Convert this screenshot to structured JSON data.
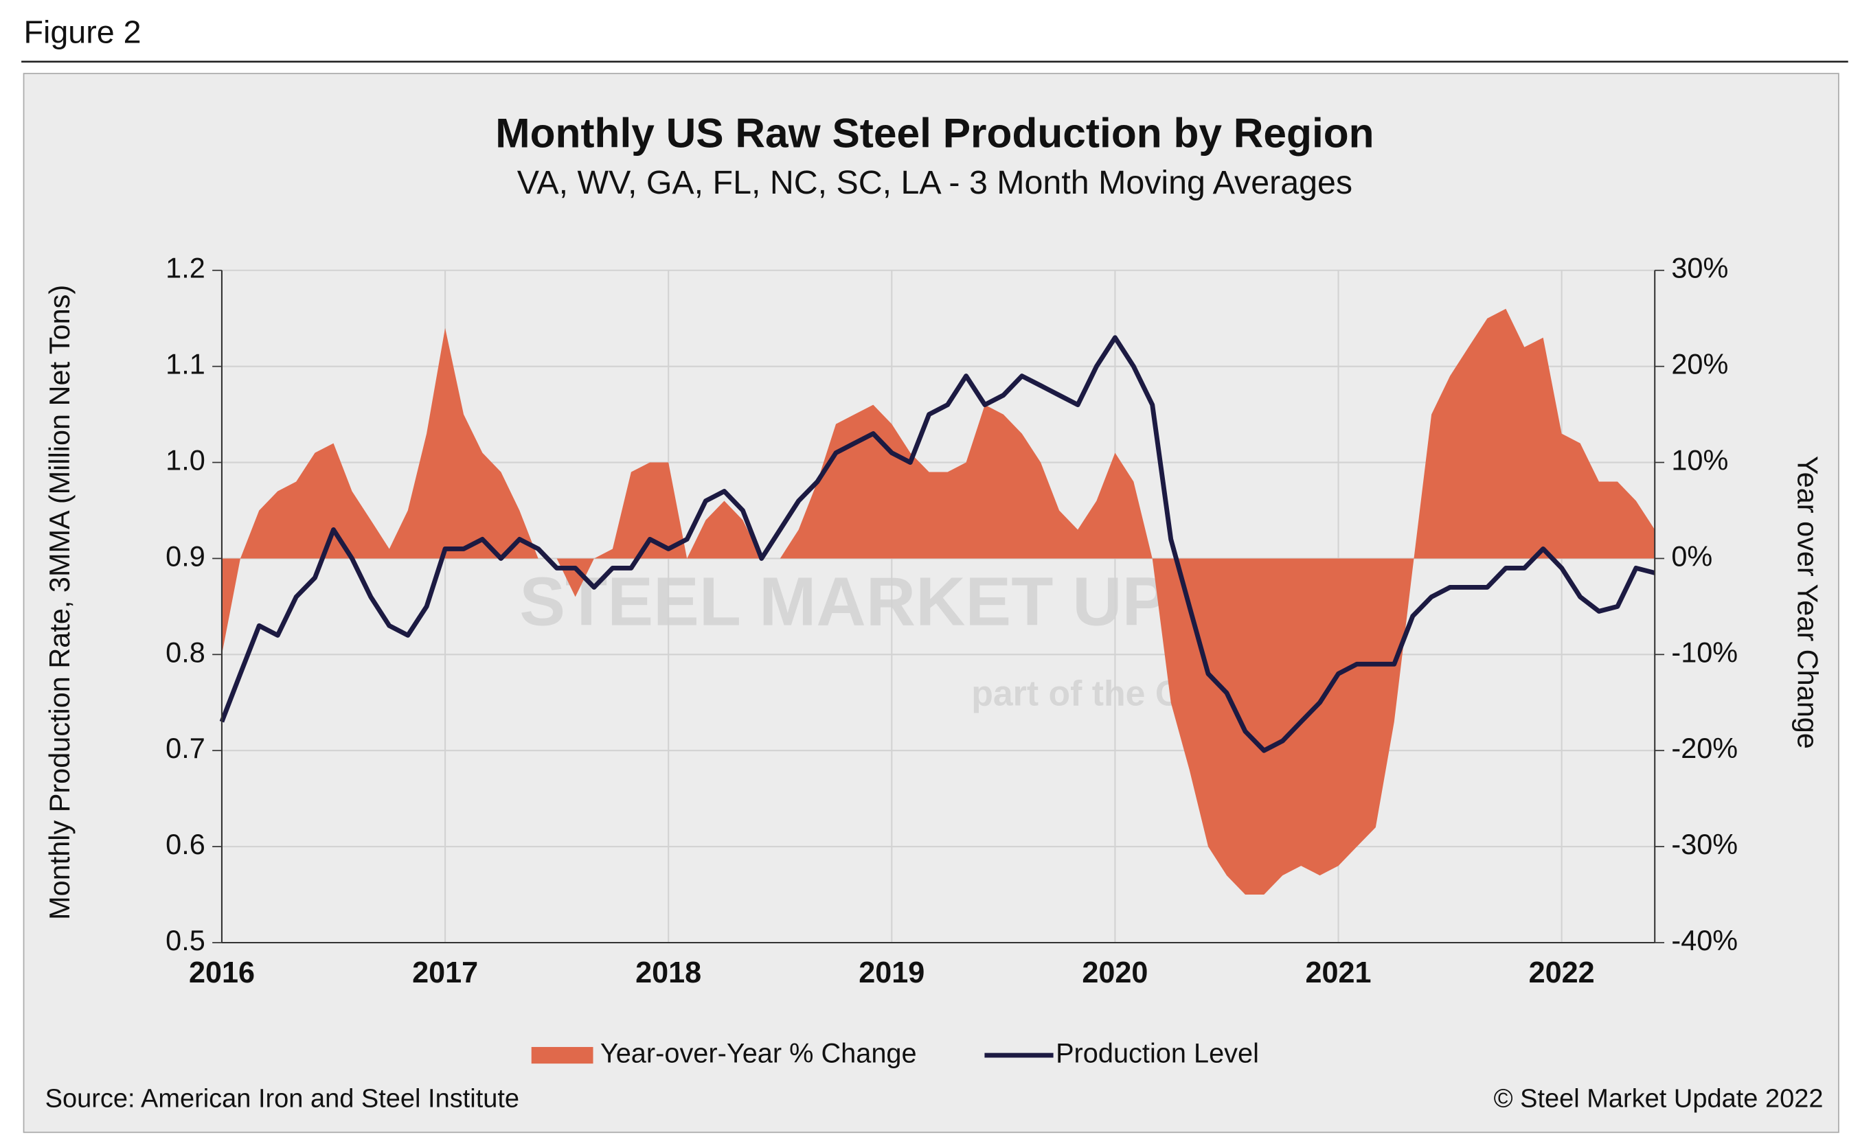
{
  "figure_label": "Figure 2",
  "chart_data": {
    "type": "combo",
    "title": "Monthly US Raw Steel Production by Region",
    "subtitle": "VA, WV, GA, FL, NC, SC, LA - 3 Month Moving Averages",
    "y_label": "Monthly Production Rate, 3MMA (Million Net Tons)",
    "y2_label": "Year over Year Change",
    "x": [
      2016,
      2016.083,
      2016.167,
      2016.25,
      2016.333,
      2016.417,
      2016.5,
      2016.583,
      2016.667,
      2016.75,
      2016.833,
      2016.917,
      2017,
      2017.083,
      2017.167,
      2017.25,
      2017.333,
      2017.417,
      2017.5,
      2017.583,
      2017.667,
      2017.75,
      2017.833,
      2017.917,
      2018,
      2018.083,
      2018.167,
      2018.25,
      2018.333,
      2018.417,
      2018.5,
      2018.583,
      2018.667,
      2018.75,
      2018.833,
      2018.917,
      2019,
      2019.083,
      2019.167,
      2019.25,
      2019.333,
      2019.417,
      2019.5,
      2019.583,
      2019.667,
      2019.75,
      2019.833,
      2019.917,
      2020,
      2020.083,
      2020.167,
      2020.25,
      2020.333,
      2020.417,
      2020.5,
      2020.583,
      2020.667,
      2020.75,
      2020.833,
      2020.917,
      2021,
      2021.083,
      2021.167,
      2021.25,
      2021.333,
      2021.417,
      2021.5,
      2021.583,
      2021.667,
      2021.75,
      2021.833,
      2021.917,
      2022,
      2022.083,
      2022.167,
      2022.25,
      2022.333,
      2022.417
    ],
    "series": [
      {
        "name": "Year-over-Year % Change",
        "kind": "area",
        "axis": "y2",
        "color": "#e0694b",
        "values": [
          -10,
          0,
          5,
          7,
          8,
          11,
          12,
          7,
          4,
          1,
          5,
          13,
          24,
          15,
          11,
          9,
          5,
          0,
          0,
          -4,
          0,
          1,
          9,
          10,
          10,
          0,
          4,
          6,
          4,
          0,
          0,
          3,
          8,
          14,
          15,
          16,
          14,
          11,
          9,
          9,
          10,
          16,
          15,
          13,
          10,
          5,
          3,
          6,
          11,
          8,
          0,
          -15,
          -22,
          -30,
          -33,
          -35,
          -35,
          -33,
          -32,
          -33,
          -32,
          -30,
          -28,
          -17,
          -1,
          15,
          19,
          22,
          25,
          26,
          22,
          23,
          13,
          12,
          8,
          8,
          6,
          3
        ]
      },
      {
        "name": "Production Level",
        "kind": "line",
        "axis": "y",
        "color": "#1c1a42",
        "values": [
          0.73,
          0.78,
          0.83,
          0.82,
          0.86,
          0.88,
          0.93,
          0.9,
          0.86,
          0.83,
          0.82,
          0.85,
          0.91,
          0.91,
          0.92,
          0.9,
          0.92,
          0.91,
          0.89,
          0.89,
          0.87,
          0.89,
          0.89,
          0.92,
          0.91,
          0.92,
          0.96,
          0.97,
          0.95,
          0.9,
          0.93,
          0.96,
          0.98,
          1.01,
          1.02,
          1.03,
          1.01,
          1.0,
          1.05,
          1.06,
          1.09,
          1.06,
          1.07,
          1.09,
          1.08,
          1.07,
          1.06,
          1.1,
          1.13,
          1.1,
          1.06,
          0.92,
          0.85,
          0.78,
          0.76,
          0.72,
          0.7,
          0.71,
          0.73,
          0.75,
          0.78,
          0.79,
          0.79,
          0.79,
          0.84,
          0.86,
          0.87,
          0.87,
          0.87,
          0.89,
          0.89,
          0.91,
          0.89,
          0.86,
          0.845,
          0.85,
          0.89,
          0.885
        ]
      }
    ],
    "xlim": [
      2016,
      2022.417
    ],
    "xticks": [
      2016,
      2017,
      2018,
      2019,
      2020,
      2021,
      2022
    ],
    "ylim": [
      0.5,
      1.2
    ],
    "yticks": [
      0.5,
      0.6,
      0.7,
      0.8,
      0.9,
      {
        "value": 1,
        "label": "1.0"
      },
      1.1,
      1.2
    ],
    "y2lim": [
      -40,
      30
    ],
    "y2ticks": [
      {
        "value": -40,
        "label": "-40%"
      },
      {
        "value": -30,
        "label": "-30%"
      },
      {
        "value": -20,
        "label": "-20%"
      },
      {
        "value": -10,
        "label": "-10%"
      },
      {
        "value": 0,
        "label": "0%"
      },
      {
        "value": 10,
        "label": "10%"
      },
      {
        "value": 20,
        "label": "20%"
      },
      {
        "value": 30,
        "label": "30%"
      }
    ],
    "grid": true,
    "legend": "bottom",
    "watermark": "STEEL MARKET UPDATE",
    "watermark_sub": "part of the CRU Group",
    "source": "Source: American Iron and Steel Institute",
    "copyright": "© Steel Market Update 2022"
  }
}
